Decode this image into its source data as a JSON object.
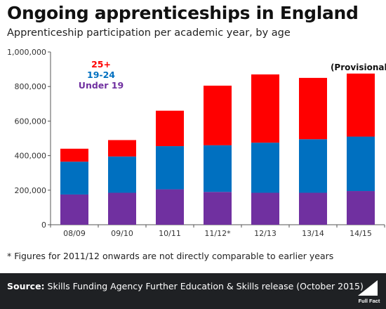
{
  "title": "Ongoing apprenticeships in England",
  "subtitle": "Apprenticeship participation per academic year, by age",
  "footnote": "* Figures for 2011/12 onwards are not directly comparable to earlier years",
  "source": {
    "label": "Source:",
    "text": " Skills Funding Agency Further Education & Skills release (October 2015)"
  },
  "logo_text": "Full Fact",
  "colors": {
    "under19": "#7030a0",
    "age19_24": "#0070c0",
    "age25plus": "#ff0000",
    "source_bar": "#1f2124"
  },
  "chart_data": {
    "type": "bar",
    "stacked": true,
    "categories": [
      "08/09",
      "09/10",
      "10/11",
      "11/12*",
      "12/13",
      "13/14",
      "14/15"
    ],
    "series": [
      {
        "name": "Under 19",
        "color": "#7030a0",
        "values": [
          175000,
          185000,
          205000,
          190000,
          185000,
          185000,
          195000
        ]
      },
      {
        "name": "19-24",
        "color": "#0070c0",
        "values": [
          190000,
          210000,
          250000,
          270000,
          290000,
          310000,
          315000
        ]
      },
      {
        "name": "25+",
        "color": "#ff0000",
        "values": [
          75000,
          95000,
          205000,
          345000,
          395000,
          355000,
          365000
        ]
      }
    ],
    "ylim": [
      0,
      1000000
    ],
    "yticks": [
      0,
      200000,
      400000,
      600000,
      800000,
      1000000
    ],
    "ytick_labels": [
      "0",
      "200,000",
      "400,000",
      "600,000",
      "800,000",
      "1,000,000"
    ],
    "legend": {
      "placement": "top-left",
      "order": [
        "25+",
        "19-24",
        "Under 19"
      ]
    },
    "annotations": [
      {
        "text": "(Provisional)",
        "category": "14/15"
      }
    ],
    "grid": false
  }
}
